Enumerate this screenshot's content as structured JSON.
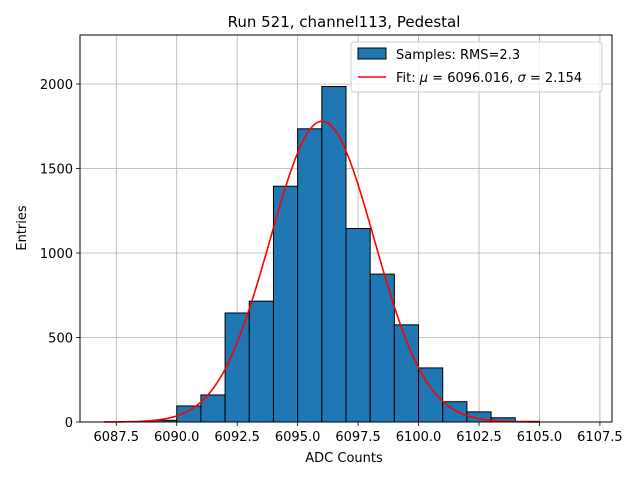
{
  "chart_data": {
    "type": "bar",
    "title": "Run 521, channel113, Pedestal",
    "xlabel": "ADC Counts",
    "ylabel": "Entries",
    "xlim": [
      6086.0,
      6108.0
    ],
    "ylim": [
      0,
      2290
    ],
    "xticks": [
      6087.5,
      6090.0,
      6092.5,
      6095.0,
      6097.5,
      6100.0,
      6102.5,
      6105.0,
      6107.5
    ],
    "xtick_labels": [
      "6087.5",
      "6090.0",
      "6092.5",
      "6095.0",
      "6097.5",
      "6100.0",
      "6102.5",
      "6105.0",
      "6107.5"
    ],
    "yticks": [
      0,
      500,
      1000,
      1500,
      2000
    ],
    "ytick_labels": [
      "0",
      "500",
      "1000",
      "1500",
      "2000"
    ],
    "grid": true,
    "legend_position": "top-right",
    "histogram": {
      "name": "Samples: RMS=2.3",
      "color": "#1f77b4",
      "edge_color": "#000000",
      "bin_edges": [
        6087,
        6088,
        6089,
        6090,
        6091,
        6092,
        6093,
        6094,
        6095,
        6096,
        6097,
        6098,
        6099,
        6100,
        6101,
        6102,
        6103,
        6104,
        6105,
        6106,
        6107
      ],
      "counts": [
        0,
        3,
        10,
        95,
        160,
        645,
        715,
        1395,
        1735,
        1985,
        1145,
        875,
        575,
        320,
        120,
        60,
        25,
        4,
        0,
        0
      ]
    },
    "fit": {
      "name_prefix": "Fit: ",
      "name_mu": "μ",
      "name_mid": " = 6096.016, ",
      "name_sigma": "σ",
      "name_suffix": " = 2.154",
      "color": "#ff0000",
      "mu": 6096.016,
      "sigma": 2.154,
      "amplitude": 1780,
      "x_range": [
        6087.0,
        6105.0
      ]
    }
  }
}
